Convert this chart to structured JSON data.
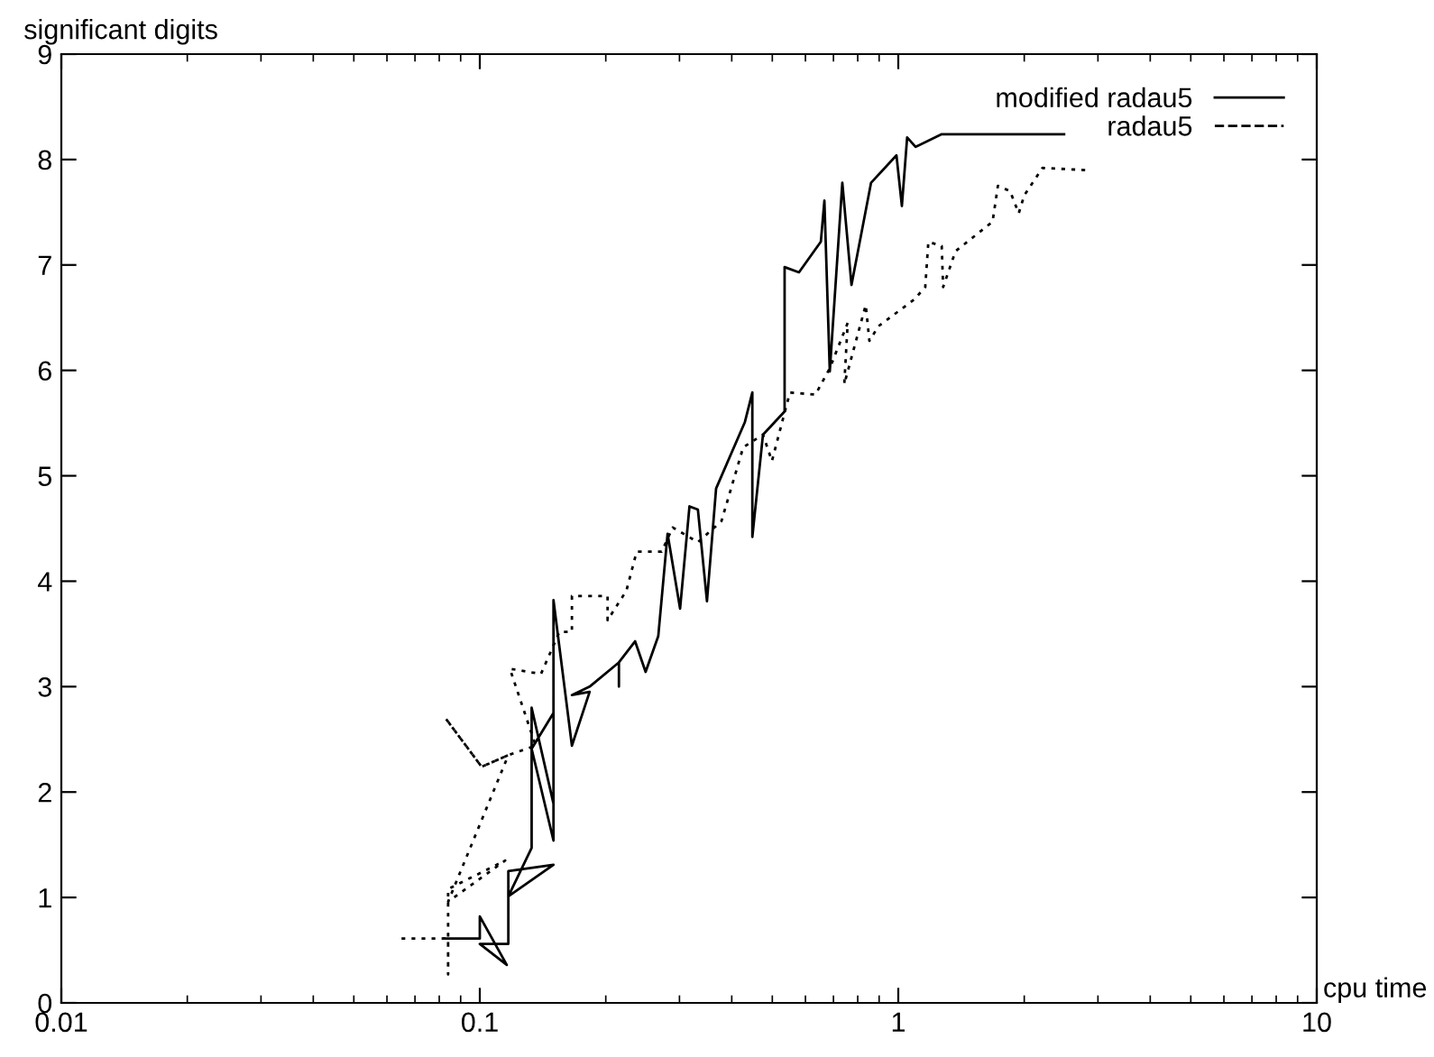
{
  "chart_data": {
    "type": "line",
    "xlabel": "cpu time",
    "ylabel": "significant digits",
    "log": "x",
    "xlim": [
      0.01,
      10
    ],
    "xticks": [
      0.01,
      0.1,
      1,
      10
    ],
    "ylim": [
      0,
      9
    ],
    "yticks": [
      0,
      1,
      2,
      3,
      4,
      5,
      6,
      7,
      8,
      9
    ],
    "grid": false,
    "legend": "top right",
    "marker": "none",
    "series": [
      {
        "name": "modified radau5",
        "color": "#000000",
        "line_style": "solid",
        "x": [
          0.082,
          0.1,
          0.1,
          0.116,
          0.1,
          0.117,
          0.117,
          0.15,
          0.117,
          0.133,
          0.133,
          0.15,
          0.15,
          0.133,
          0.15,
          0.15,
          0.166,
          0.183,
          0.166,
          0.183,
          0.215,
          0.215,
          0.215,
          0.235,
          0.249,
          0.267,
          0.281,
          0.301,
          0.317,
          0.332,
          0.349,
          0.367,
          0.43,
          0.448,
          0.448,
          0.475,
          0.535,
          0.535,
          0.579,
          0.653,
          0.666,
          0.686,
          0.735,
          0.773,
          0.861,
          0.99,
          1.02,
          1.05,
          1.1,
          1.27,
          2.49
        ],
        "values": [
          0.61,
          0.61,
          0.82,
          0.36,
          0.56,
          0.56,
          1.25,
          1.31,
          1.01,
          1.47,
          2.8,
          1.89,
          2.75,
          2.41,
          1.54,
          3.82,
          2.44,
          2.95,
          2.92,
          3.0,
          3.23,
          3.0,
          3.23,
          3.43,
          3.14,
          3.48,
          4.45,
          3.74,
          4.71,
          4.68,
          3.81,
          4.88,
          5.51,
          5.79,
          4.42,
          5.39,
          5.61,
          6.98,
          6.93,
          7.22,
          7.61,
          5.99,
          7.78,
          6.81,
          7.78,
          8.04,
          7.56,
          8.21,
          8.12,
          8.24,
          8.24
        ]
      },
      {
        "name": "radau5",
        "color": "#000000",
        "line_style": "dotted",
        "x": [
          0.065,
          0.084,
          0.084,
          0.084,
          0.115,
          0.084,
          0.117,
          0.101,
          0.0828,
          0.101,
          0.117,
          0.136,
          0.118,
          0.14,
          0.155,
          0.166,
          0.166,
          0.202,
          0.202,
          0.224,
          0.237,
          0.272,
          0.289,
          0.332,
          0.378,
          0.426,
          0.475,
          0.499,
          0.535,
          0.551,
          0.634,
          0.686,
          0.757,
          0.743,
          0.836,
          0.853,
          0.897,
          1.09,
          1.16,
          1.18,
          1.27,
          1.28,
          1.37,
          1.68,
          1.73,
          1.85,
          1.94,
          2.0,
          2.21,
          2.81
        ],
        "values": [
          0.61,
          0.61,
          0.27,
          1.08,
          1.35,
          0.96,
          2.35,
          2.24,
          2.7,
          2.24,
          2.35,
          2.44,
          3.17,
          3.12,
          3.52,
          3.52,
          3.86,
          3.86,
          3.63,
          3.91,
          4.28,
          4.28,
          4.51,
          4.37,
          4.57,
          5.27,
          5.39,
          5.14,
          5.6,
          5.79,
          5.77,
          6.02,
          6.45,
          5.87,
          6.62,
          6.28,
          6.42,
          6.67,
          6.79,
          7.22,
          7.18,
          6.79,
          7.13,
          7.41,
          7.75,
          7.7,
          7.49,
          7.66,
          7.92,
          7.9
        ]
      }
    ]
  }
}
